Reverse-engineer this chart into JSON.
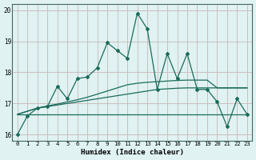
{
  "title": "",
  "xlabel": "Humidex (Indice chaleur)",
  "ylabel": "",
  "bg_color": "#e0f2f2",
  "grid_color": "#c8b8b8",
  "line_color": "#1a6b5a",
  "xlim": [
    -0.5,
    23.5
  ],
  "ylim": [
    15.8,
    20.2
  ],
  "yticks": [
    16,
    17,
    18,
    19,
    20
  ],
  "xticks": [
    0,
    1,
    2,
    3,
    4,
    5,
    6,
    7,
    8,
    9,
    10,
    11,
    12,
    13,
    14,
    15,
    16,
    17,
    18,
    19,
    20,
    21,
    22,
    23
  ],
  "main_line": [
    16.0,
    16.6,
    16.85,
    16.9,
    17.55,
    17.15,
    17.8,
    17.85,
    18.15,
    18.95,
    18.7,
    18.45,
    19.9,
    19.4,
    17.45,
    18.6,
    17.8,
    18.6,
    17.45,
    17.45,
    17.05,
    16.25,
    17.15,
    16.65
  ],
  "flat_line": [
    16.65,
    16.65,
    16.65,
    16.65,
    16.65,
    16.65,
    16.65,
    16.65,
    16.65,
    16.65,
    16.65,
    16.65,
    16.65,
    16.65,
    16.65,
    16.65,
    16.65,
    16.65,
    16.65,
    16.65,
    16.65,
    16.65,
    16.65,
    16.65
  ],
  "rise_line1": [
    16.65,
    16.75,
    16.85,
    16.9,
    16.95,
    17.0,
    17.05,
    17.1,
    17.15,
    17.2,
    17.25,
    17.3,
    17.35,
    17.4,
    17.45,
    17.47,
    17.49,
    17.5,
    17.5,
    17.5,
    17.5,
    17.5,
    17.5,
    17.5
  ],
  "rise_line2": [
    16.65,
    16.75,
    16.85,
    16.92,
    16.98,
    17.05,
    17.12,
    17.2,
    17.3,
    17.4,
    17.5,
    17.6,
    17.65,
    17.68,
    17.7,
    17.72,
    17.74,
    17.75,
    17.75,
    17.75,
    17.5,
    17.5,
    17.5,
    17.5
  ]
}
